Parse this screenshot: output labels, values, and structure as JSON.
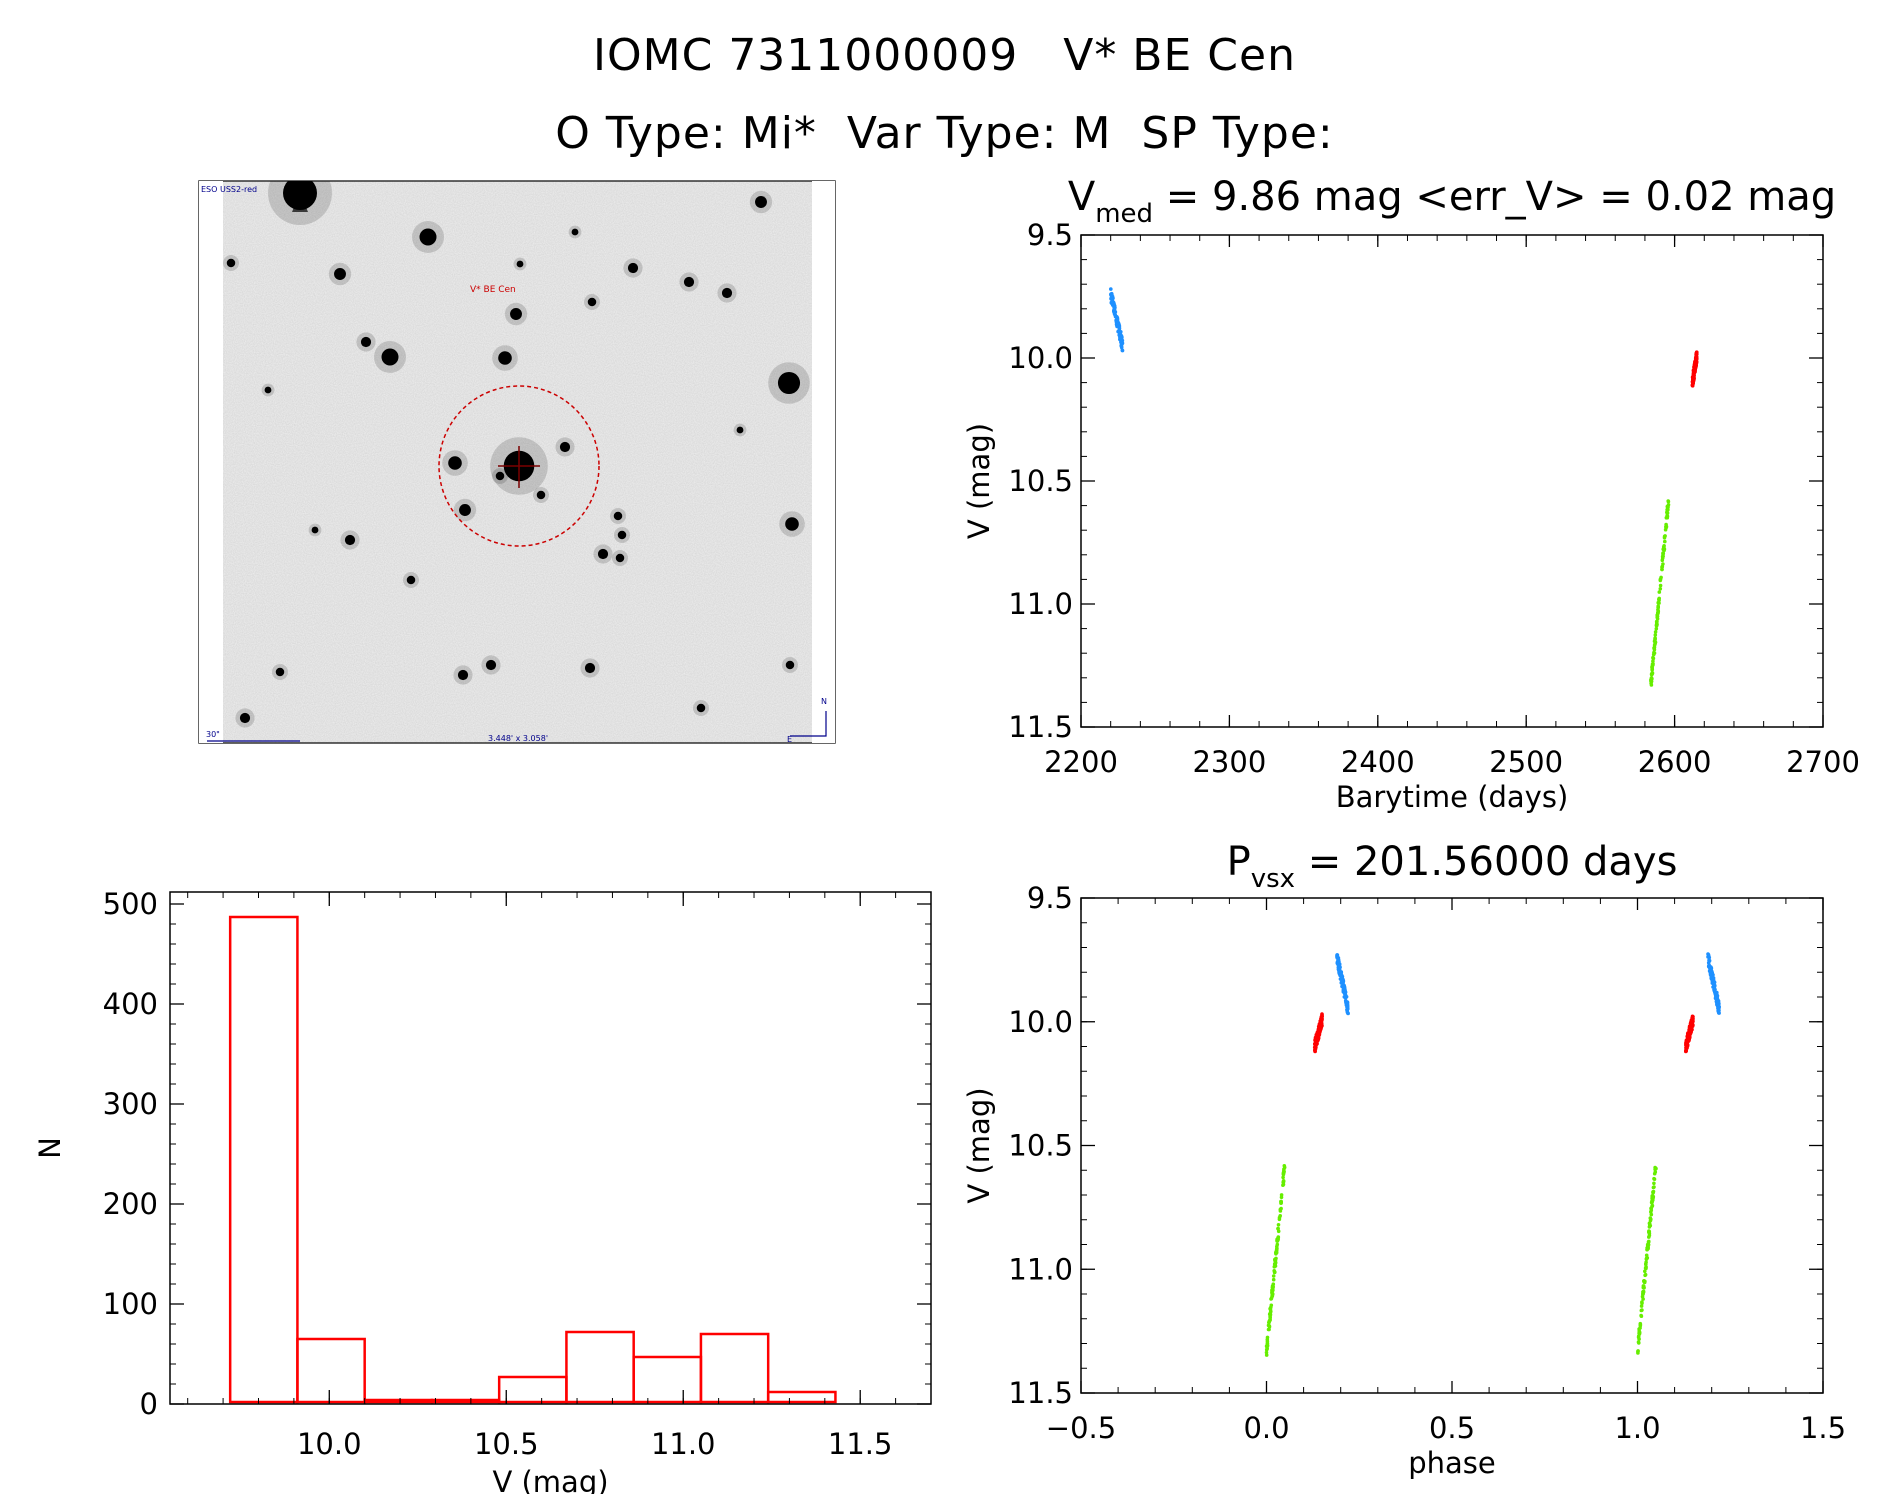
{
  "header": {
    "line1": "IOMC 7311000009   V* BE Cen",
    "line2": "O Type: Mi*  Var Type: M  SP Type:"
  },
  "finder": {
    "survey_label": "ESO USS2-red",
    "target_label": "V* BE Cen",
    "scale_label": "30\"",
    "fov_label": "3.448' x 3.058'",
    "north_label": "N",
    "east_label": "E"
  },
  "colors": {
    "blue": "#1e90ff",
    "red": "#ff0000",
    "green": "#66ee00",
    "hist": "#ff0000",
    "finder_marks": "#cc0000",
    "finder_text_blue": "#00008b"
  },
  "chart_data": [
    {
      "type": "scatter",
      "title": "V_med = 9.86 mag <err_V> = 0.02 mag",
      "title_parts": {
        "v": "V",
        "sub": "med",
        "rest": " = 9.86 mag <err_V> = 0.02 mag"
      },
      "xlabel": "Barytime (days)",
      "ylabel": "V (mag)",
      "xlim": [
        2200,
        2700
      ],
      "ylim": [
        11.5,
        9.5
      ],
      "y_inverted": true,
      "xticks": [
        "2200",
        "2300",
        "2400",
        "2500",
        "2600",
        "2700"
      ],
      "yticks": [
        "9.5",
        "10.0",
        "10.5",
        "11.0",
        "11.5"
      ],
      "series": [
        {
          "color": "blue",
          "x_range": [
            2220,
            2228
          ],
          "y_range": [
            9.74,
            9.95
          ]
        },
        {
          "color": "green",
          "x_range": [
            2584,
            2596
          ],
          "y_range": [
            11.33,
            10.57
          ]
        },
        {
          "color": "red",
          "x_range": [
            2612,
            2615
          ],
          "y_range": [
            10.1,
            9.99
          ]
        }
      ]
    },
    {
      "type": "scatter",
      "title": "P_vsx = 201.56000 days",
      "title_parts": {
        "p": "P",
        "sub": "vsx",
        "rest": " = 201.56000 days"
      },
      "xlabel": "phase",
      "ylabel": "V (mag)",
      "xlim": [
        -0.5,
        1.5
      ],
      "ylim": [
        11.5,
        9.5
      ],
      "y_inverted": true,
      "xticks": [
        "−0.5",
        "0.0",
        "0.5",
        "1.0",
        "1.5"
      ],
      "yticks": [
        "9.5",
        "10.0",
        "10.5",
        "11.0",
        "11.5"
      ],
      "series": [
        {
          "color": "green",
          "x_range": [
            0.0,
            0.05
          ],
          "y_range": [
            11.33,
            10.57
          ]
        },
        {
          "color": "red",
          "x_range": [
            0.13,
            0.15
          ],
          "y_range": [
            10.1,
            9.99
          ]
        },
        {
          "color": "blue",
          "x_range": [
            0.19,
            0.22
          ],
          "y_range": [
            9.74,
            9.95
          ]
        },
        {
          "color": "green",
          "x_range": [
            1.0,
            1.05
          ],
          "y_range": [
            11.33,
            10.57
          ]
        },
        {
          "color": "red",
          "x_range": [
            1.13,
            1.15
          ],
          "y_range": [
            10.1,
            9.99
          ]
        },
        {
          "color": "blue",
          "x_range": [
            1.19,
            1.22
          ],
          "y_range": [
            9.74,
            9.95
          ]
        }
      ]
    },
    {
      "type": "bar",
      "title": "",
      "xlabel": "V (mag)",
      "ylabel": "N",
      "xlim": [
        9.55,
        11.7
      ],
      "ylim": [
        0,
        500
      ],
      "xticks": [
        "10.0",
        "10.5",
        "11.0",
        "11.5"
      ],
      "yticks": [
        "0",
        "100",
        "200",
        "300",
        "400",
        "500"
      ],
      "bin_edges": [
        9.72,
        9.91,
        10.1,
        10.29,
        10.48,
        10.67,
        10.86,
        11.05,
        11.24,
        11.43
      ],
      "values": [
        487,
        65,
        2,
        0,
        27,
        72,
        47,
        70,
        12
      ]
    }
  ]
}
